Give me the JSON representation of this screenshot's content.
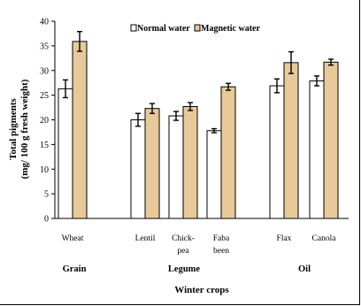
{
  "chart_data": {
    "type": "bar",
    "title": "",
    "xlabel": "Winter crops",
    "ylabel_line1": "Total pigments",
    "ylabel_line2": "(mg/ 100 g fresh weight)",
    "ylim": [
      0,
      40
    ],
    "yticks": [
      0,
      5,
      10,
      15,
      20,
      25,
      30,
      35,
      40
    ],
    "grid": false,
    "legend_position": "top",
    "categories": [
      "Wheat",
      "Lentil",
      "Chick-pea",
      "Faba been",
      "Flax",
      "Canola"
    ],
    "category_lines": [
      [
        "Wheat"
      ],
      [
        "Lentil"
      ],
      [
        "Chick-",
        "pea"
      ],
      [
        "Faba",
        "been"
      ],
      [
        "Flax"
      ],
      [
        "Canola"
      ]
    ],
    "groups": [
      {
        "label": "Grain",
        "members": [
          "Wheat"
        ]
      },
      {
        "label": "Legume",
        "members": [
          "Lentil",
          "Chick-pea",
          "Faba been"
        ]
      },
      {
        "label": "Oil",
        "members": [
          "Flax",
          "Canola"
        ]
      }
    ],
    "series": [
      {
        "name": "Normal water",
        "color": "#ffffff",
        "values": [
          26.3,
          20.0,
          20.8,
          17.8,
          26.9,
          27.9
        ],
        "errors": [
          1.8,
          1.3,
          0.9,
          0.4,
          1.4,
          1.0
        ]
      },
      {
        "name": "Magnetic water",
        "color": "#e8c99a",
        "values": [
          35.9,
          22.3,
          22.7,
          26.7,
          31.6,
          31.7
        ],
        "errors": [
          2.0,
          1.0,
          0.8,
          0.7,
          2.2,
          0.6
        ]
      }
    ]
  }
}
